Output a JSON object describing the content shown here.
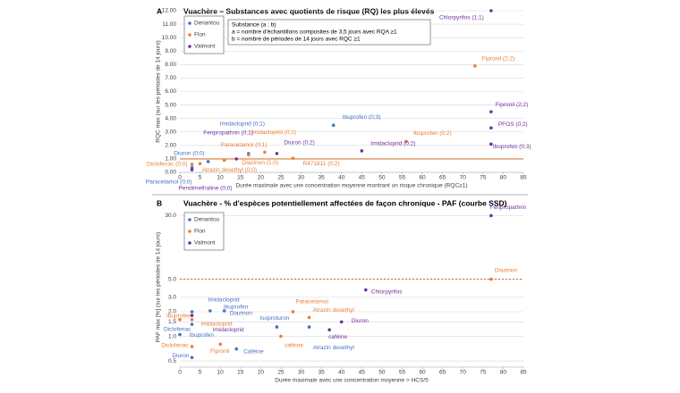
{
  "chart_data": [
    {
      "type": "scatter",
      "panel": "A",
      "title": "Vuachère – Substances avec quotients de risque (RQ) les plus élevés",
      "x_label": "Durée maximale avec une concentration moyenne montrant un risque chronique (RQC≥1)",
      "y_label": "RQC max (sur les périodes de 14 jours)",
      "annotation": [
        "Substance (a ; b)",
        "a = nombre d'échantillons composites de 3,5 jours avec RQA ≥1",
        "b = nombre de périodes de 14 jours avec RQC ≥1"
      ],
      "xlim": [
        0,
        85
      ],
      "xticks": [
        0,
        5,
        10,
        15,
        20,
        25,
        30,
        35,
        40,
        45,
        50,
        55,
        60,
        65,
        70,
        75,
        80,
        85
      ],
      "ylim": [
        0,
        12
      ],
      "yticks": [
        {
          "value": 0,
          "label": "0.00"
        },
        {
          "value": 1,
          "label": "1.00"
        },
        {
          "value": 2,
          "label": "2.00"
        },
        {
          "value": 3,
          "label": "3.00"
        },
        {
          "value": 4,
          "label": "4.00"
        },
        {
          "value": 5,
          "label": "5.00"
        },
        {
          "value": 6,
          "label": "6.00"
        },
        {
          "value": 7,
          "label": "7.00"
        },
        {
          "value": 8,
          "label": "8.00"
        },
        {
          "value": 9,
          "label": "9.00"
        },
        {
          "value": 10,
          "label": "10.00"
        },
        {
          "value": 11,
          "label": "11.00"
        },
        {
          "value": 12,
          "label": "12.00"
        }
      ],
      "log_y": false,
      "grid": true,
      "legend": "upper left",
      "reference_line": {
        "value": 1,
        "color": "#c55a11",
        "dashed": false
      },
      "series": [
        {
          "name": "Denantou",
          "color": "#4472c4",
          "x": [
            38,
            17,
            7,
            3
          ],
          "values": [
            3.5,
            1.4,
            0.8,
            0.35
          ],
          "labels": [
            "Ibuprofen (0;3)",
            "Imidacloprid (0;1)",
            "Diuron (0;0)",
            "Paracetamol (0;0)"
          ]
        },
        {
          "name": "Flon",
          "color": "#ed7d31",
          "x": [
            73,
            56,
            21,
            17,
            11,
            28,
            3,
            5
          ],
          "values": [
            7.9,
            2.3,
            1.5,
            1.3,
            0.9,
            1.05,
            0.6,
            0.65
          ],
          "labels": [
            "Fipronil (2;2)",
            "Ibuprofen (0;2)",
            "Imidacloprid (0;1)",
            "Paracetamol (0;1)",
            "Diazinon (1;0)",
            "R471811 (0;2)",
            "Diclofenac (0;0)",
            "Atrazin desethyl (0;0)"
          ]
        },
        {
          "name": "Valmont",
          "color": "#7030a0",
          "x": [
            77,
            77,
            77,
            77,
            45,
            24,
            14,
            3
          ],
          "values": [
            12,
            4.5,
            3.3,
            2.1,
            1.6,
            1.4,
            1.0,
            0.2
          ],
          "labels": [
            "Chlorpyrifos (1;1)",
            "Fipronil (2;2)",
            "PFOS (0;2)",
            "Ibuprofen (0;3)",
            "Imidacloprid (0;2)",
            "Diuron (0;2)",
            "Fenpropathrin (0;1)",
            "Pendimethaline (0;0)"
          ]
        }
      ]
    },
    {
      "type": "scatter",
      "panel": "B",
      "title": "Vuachère - % d'espèces potentiellement affectées de façon chronique - PAF (courbe SSD)",
      "x_label": "Durée maximale avec une concentration moyenne > HCS/5",
      "y_label": "PAF max [%] (sur les périodes de 14 jours)",
      "xlim": [
        0,
        85
      ],
      "xticks": [
        0,
        5,
        10,
        15,
        20,
        25,
        30,
        35,
        40,
        45,
        50,
        55,
        60,
        65,
        70,
        75,
        80,
        85
      ],
      "ylim": [
        0.42,
        38
      ],
      "yticks": [
        {
          "value": 0.5,
          "label": "0.5"
        },
        {
          "value": 1,
          "label": "1.0"
        },
        {
          "value": 1.5,
          "label": "1.5"
        },
        {
          "value": 2,
          "label": "2.0"
        },
        {
          "value": 3,
          "label": "3.0"
        },
        {
          "value": 5,
          "label": "5.0"
        },
        {
          "value": 30,
          "label": "30.0"
        }
      ],
      "log_y": true,
      "grid": true,
      "legend": "upper left",
      "reference_line": {
        "value": 5,
        "color": "#c55a11",
        "dashed": true
      },
      "series": [
        {
          "name": "Denantou",
          "color": "#4472c4",
          "x": [
            3,
            7.5,
            11,
            3,
            0,
            3,
            14,
            24,
            32
          ],
          "values": [
            2.0,
            2.05,
            2.05,
            1.4,
            1.05,
            0.55,
            0.7,
            1.3,
            1.3
          ],
          "labels": [
            "Imidacloprid",
            "Ibuprofen",
            "Diazinon",
            "Ibuprofen",
            "Diclofenac",
            "Diuron",
            "Caféine",
            "Isoproturon",
            "Atrazin desethyl"
          ]
        },
        {
          "name": "Flon",
          "color": "#ed7d31",
          "x": [
            0,
            3,
            10,
            3,
            25,
            28,
            32,
            77
          ],
          "values": [
            1.6,
            1.6,
            0.8,
            0.75,
            1.0,
            2.0,
            1.7,
            5.0
          ],
          "labels": [
            "Ibuprofen",
            "Imidacloprid",
            "Fipronil",
            "Diclofenac",
            "caféine",
            "Paracetamol",
            "Atrazin desethyl",
            "Diazinon"
          ]
        },
        {
          "name": "Valmont",
          "color": "#7030a0",
          "x": [
            77,
            46,
            40,
            37,
            3
          ],
          "values": [
            30,
            3.7,
            1.5,
            1.2,
            1.8
          ],
          "labels": [
            "Fenpropathrin",
            "Chlorpyrifos",
            "Diuron",
            "caféine",
            "Imidacloprid"
          ]
        }
      ]
    }
  ]
}
